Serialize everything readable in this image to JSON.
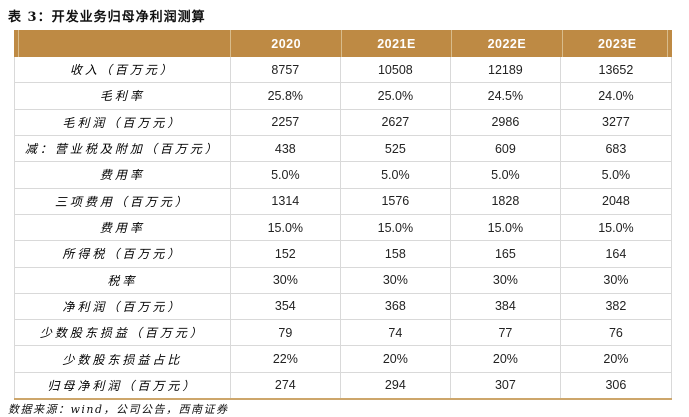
{
  "title": "表 3：开发业务归母净利润测算",
  "table": {
    "columns": [
      "",
      "2020",
      "2021E",
      "2022E",
      "2023E"
    ],
    "rows": [
      {
        "label": "收入（百万元）",
        "values": [
          "8757",
          "10508",
          "12189",
          "13652"
        ]
      },
      {
        "label": "毛利率",
        "values": [
          "25.8%",
          "25.0%",
          "24.5%",
          "24.0%"
        ]
      },
      {
        "label": "毛利润（百万元）",
        "values": [
          "2257",
          "2627",
          "2986",
          "3277"
        ]
      },
      {
        "label": "减：营业税及附加（百万元）",
        "values": [
          "438",
          "525",
          "609",
          "683"
        ]
      },
      {
        "label": "费用率",
        "values": [
          "5.0%",
          "5.0%",
          "5.0%",
          "5.0%"
        ]
      },
      {
        "label": "三项费用（百万元）",
        "values": [
          "1314",
          "1576",
          "1828",
          "2048"
        ]
      },
      {
        "label": "费用率",
        "values": [
          "15.0%",
          "15.0%",
          "15.0%",
          "15.0%"
        ]
      },
      {
        "label": "所得税（百万元）",
        "values": [
          "152",
          "158",
          "165",
          "164"
        ]
      },
      {
        "label": "税率",
        "values": [
          "30%",
          "30%",
          "30%",
          "30%"
        ]
      },
      {
        "label": "净利润（百万元）",
        "values": [
          "354",
          "368",
          "384",
          "382"
        ]
      },
      {
        "label": "少数股东损益（百万元）",
        "values": [
          "79",
          "74",
          "77",
          "76"
        ]
      },
      {
        "label": "少数股东损益占比",
        "values": [
          "22%",
          "20%",
          "20%",
          "20%"
        ]
      },
      {
        "label": "归母净利润（百万元）",
        "values": [
          "274",
          "294",
          "307",
          "306"
        ]
      }
    ]
  },
  "footer": {
    "source": "数据来源：wind，公司公告，西南证券"
  },
  "colors": {
    "header_bg": "#be8a44",
    "header_text": "#ffffff",
    "header_separator": "#d8bc8c",
    "grid": "#d9d9d9",
    "bottom_border": "#cda66b",
    "text": "#1a1a1a"
  }
}
